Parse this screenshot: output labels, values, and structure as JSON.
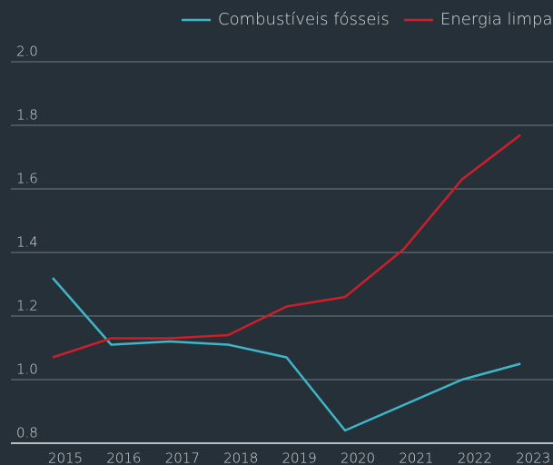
{
  "chart_data": {
    "type": "line",
    "categories": [
      "2015",
      "2016",
      "2017",
      "2018",
      "2019",
      "2020",
      "2021",
      "2022",
      "2023"
    ],
    "series": [
      {
        "name": "Combustíveis fósseis",
        "color": "#3fb5c8",
        "values": [
          1.32,
          1.11,
          1.12,
          1.11,
          1.07,
          0.84,
          0.92,
          1.0,
          1.05
        ]
      },
      {
        "name": "Energia limpa",
        "color": "#cc1f2a",
        "values": [
          1.07,
          1.13,
          1.13,
          1.14,
          1.23,
          1.26,
          1.41,
          1.63,
          1.77
        ]
      }
    ],
    "ylim": [
      0.8,
      2.0
    ],
    "yticks": [
      {
        "value": 0.8,
        "label": "0.8"
      },
      {
        "value": 1.0,
        "label": "1.0"
      },
      1.2,
      1.4,
      1.6,
      1.8,
      {
        "value": 2.0,
        "label": "2.0"
      }
    ],
    "grid": true
  }
}
